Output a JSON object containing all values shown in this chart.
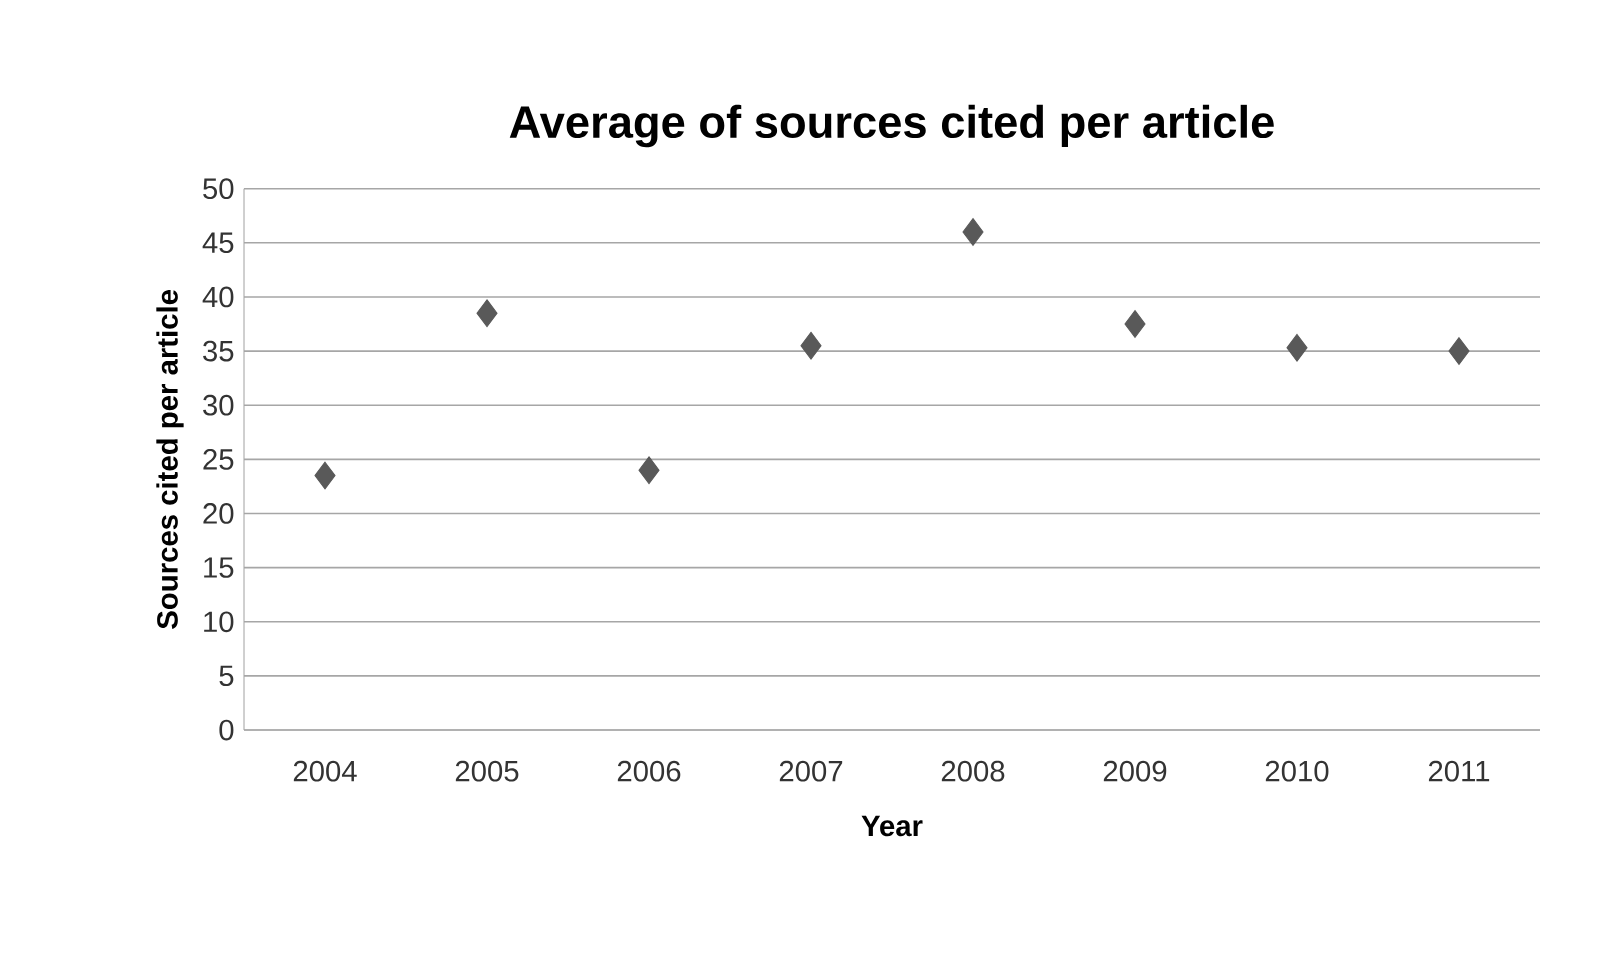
{
  "chart_data": {
    "type": "scatter",
    "title": "Average of sources cited per article",
    "xlabel": "Year",
    "ylabel": "Sources cited per article",
    "categories": [
      "2004",
      "2005",
      "2006",
      "2007",
      "2008",
      "2009",
      "2010",
      "2011"
    ],
    "series": [
      {
        "color": "#595959",
        "values": [
          23.5,
          38.5,
          24,
          35.5,
          46,
          37.5,
          35.3,
          35
        ]
      }
    ],
    "ylim": [
      0,
      50
    ],
    "yticks": [
      0,
      5,
      10,
      15,
      20,
      25,
      30,
      35,
      40,
      45,
      50
    ],
    "grid": "y",
    "marker": "diamond"
  }
}
